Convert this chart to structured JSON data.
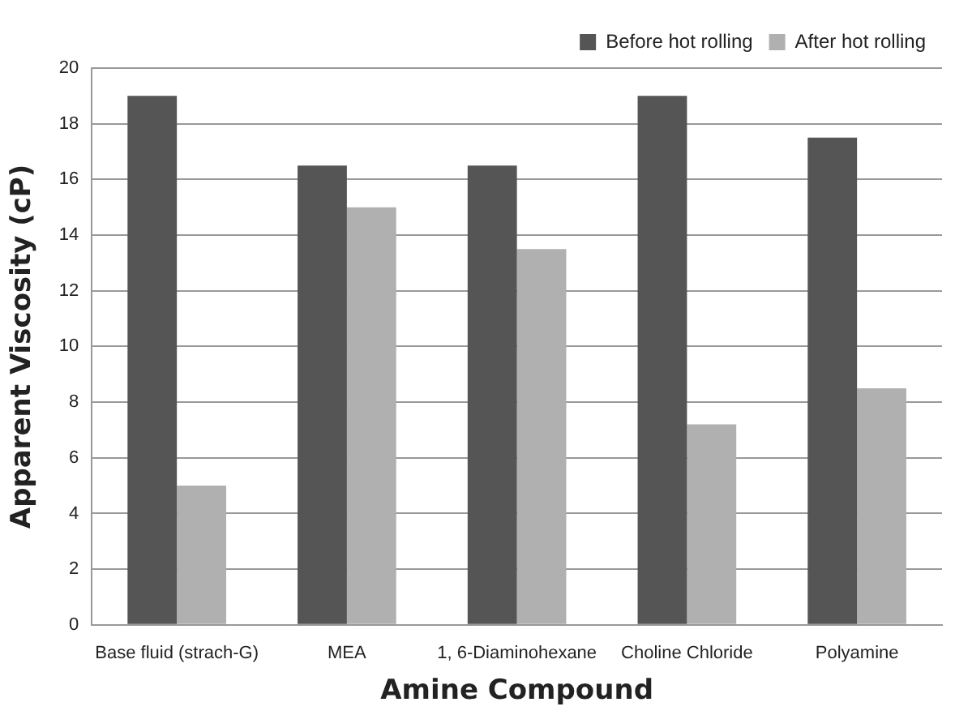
{
  "chart_data": {
    "type": "bar",
    "xlabel": "Amine Compound",
    "ylabel": "Apparent Viscosity (cP)",
    "categories": [
      "Base fluid (strach-G)",
      "MEA",
      "1, 6-Diaminohexane",
      "Choline Chloride",
      "Polyamine"
    ],
    "series": [
      {
        "name": "Before hot rolling",
        "color": "#555555",
        "values": [
          19,
          16.5,
          16.5,
          19,
          17.5
        ]
      },
      {
        "name": "After hot rolling",
        "color": "#b0b0b0",
        "values": [
          5,
          15,
          13.5,
          7.2,
          8.5
        ]
      }
    ],
    "ylim": [
      0,
      20
    ],
    "yticks": [
      0,
      2,
      4,
      6,
      8,
      10,
      12,
      14,
      16,
      18,
      20
    ],
    "grid": "y",
    "legend": "top right"
  }
}
